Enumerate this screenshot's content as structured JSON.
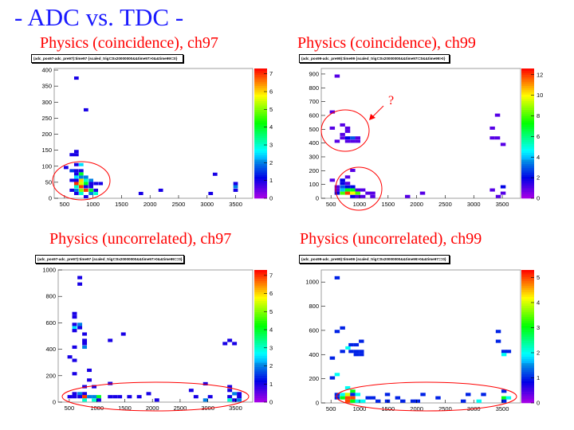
{
  "slide": {
    "heading": "- ADC vs. TDC -",
    "heading_color": "#1a1aff",
    "annotation_color": "#ff0000",
    "panels": [
      {
        "subtitle": "Physics (coincidence), ch97",
        "stat_title": "(adc_pos97-adc_pre97):time97 {scaled_trig!=0x20000000&&time97>0&&time99!=0}"
      },
      {
        "subtitle": "Physics (coincidence), ch99",
        "stat_title": "(adc_pos99-adc_pre99):time99 {scaled_trig!=0x20000000&&time97!=0&&time99>0}",
        "annotation_text": "?"
      },
      {
        "subtitle": "Physics (uncorrelated), ch97",
        "stat_title": "(adc_pos97-adc_pre97):time97 {scaled_trig!=0x20000000&&time97>0&&time99==0}"
      },
      {
        "subtitle": "Physics (uncorrelated), ch99",
        "stat_title": "(adc_pos99-adc_pre99):time99 {scaled_trig!=0x20000000&&time99>0&&time97==0}"
      }
    ]
  },
  "chart_data": [
    {
      "type": "heatmap",
      "palette": "rainbow (violet-blue-cyan-green-yellow-red)",
      "xlim": [
        320,
        3800
      ],
      "ylim": [
        0,
        405
      ],
      "zlim": [
        0,
        7.3
      ],
      "bin": [
        80,
        10
      ],
      "xticks": [
        "500",
        "1000",
        "1500",
        "2000",
        "2500",
        "3000",
        "3500"
      ],
      "yticks": [
        "0",
        "50",
        "100",
        "150",
        "200",
        "250",
        "300",
        "350",
        "400"
      ],
      "zticks": [
        "0",
        "1",
        "2",
        "3",
        "4",
        "5",
        "6",
        "7"
      ],
      "points": [
        [
          709,
          375,
          1
        ],
        [
          877,
          276,
          1
        ],
        [
          709,
          146,
          1
        ],
        [
          630,
          136,
          1
        ],
        [
          709,
          136,
          1
        ],
        [
          709,
          105,
          1
        ],
        [
          793,
          105,
          2.5
        ],
        [
          528,
          96,
          1
        ],
        [
          630,
          86,
          1.5
        ],
        [
          709,
          86,
          1
        ],
        [
          793,
          86,
          1
        ],
        [
          709,
          76,
          1
        ],
        [
          793,
          76,
          4
        ],
        [
          709,
          66,
          2.5
        ],
        [
          793,
          66,
          2
        ],
        [
          877,
          66,
          2
        ],
        [
          630,
          56,
          1
        ],
        [
          709,
          56,
          1
        ],
        [
          793,
          56,
          6
        ],
        [
          877,
          56,
          3
        ],
        [
          965,
          56,
          2
        ],
        [
          709,
          46,
          7
        ],
        [
          793,
          46,
          5.5
        ],
        [
          877,
          46,
          4
        ],
        [
          965,
          46,
          1
        ],
        [
          1049,
          46,
          1
        ],
        [
          1133,
          46,
          1
        ],
        [
          709,
          36,
          3
        ],
        [
          793,
          36,
          7
        ],
        [
          877,
          36,
          1
        ],
        [
          965,
          36,
          1
        ],
        [
          630,
          25,
          1
        ],
        [
          709,
          25,
          2
        ],
        [
          793,
          25,
          5
        ],
        [
          877,
          25,
          7
        ],
        [
          965,
          25,
          4
        ],
        [
          1049,
          25,
          1
        ],
        [
          709,
          15,
          1
        ],
        [
          793,
          15,
          3
        ],
        [
          965,
          15,
          2
        ],
        [
          1049,
          15,
          3
        ],
        [
          877,
          5,
          1
        ],
        [
          1840,
          15,
          1
        ],
        [
          2188,
          25,
          1
        ],
        [
          3063,
          15,
          1
        ],
        [
          3140,
          75,
          1
        ],
        [
          3500,
          46,
          1
        ],
        [
          3500,
          36,
          2
        ],
        [
          3500,
          25,
          1
        ]
      ]
    },
    {
      "type": "heatmap",
      "palette": "rainbow (violet-blue-cyan-green-yellow-red)",
      "xlim": [
        330,
        3820
      ],
      "ylim": [
        0,
        940
      ],
      "zlim": [
        0,
        12.6
      ],
      "bin": [
        90,
        23
      ],
      "xticks": [
        "500",
        "1000",
        "1500",
        "2000",
        "2500",
        "3000",
        "3500"
      ],
      "yticks": [
        "0",
        "100",
        "200",
        "300",
        "400",
        "500",
        "600",
        "700",
        "800",
        "900"
      ],
      "zticks": [
        "0",
        "2",
        "4",
        "6",
        "8",
        "10",
        "12"
      ],
      "points": [
        [
          608,
          885,
          1
        ],
        [
          523,
          625,
          1
        ],
        [
          523,
          508,
          1
        ],
        [
          702,
          531,
          1
        ],
        [
          791,
          508,
          1
        ],
        [
          791,
          485,
          1
        ],
        [
          702,
          462,
          1
        ],
        [
          702,
          437,
          1
        ],
        [
          791,
          437,
          2
        ],
        [
          880,
          437,
          3
        ],
        [
          969,
          437,
          1
        ],
        [
          608,
          413,
          1
        ],
        [
          791,
          413,
          1
        ],
        [
          880,
          413,
          1
        ],
        [
          969,
          413,
          1
        ],
        [
          880,
          202,
          1
        ],
        [
          791,
          154,
          1
        ],
        [
          523,
          131,
          1
        ],
        [
          702,
          131,
          2
        ],
        [
          702,
          108,
          2
        ],
        [
          791,
          108,
          1
        ],
        [
          608,
          83,
          1
        ],
        [
          702,
          83,
          3
        ],
        [
          791,
          83,
          2
        ],
        [
          880,
          83,
          2
        ],
        [
          608,
          60,
          1
        ],
        [
          702,
          60,
          4
        ],
        [
          791,
          60,
          7
        ],
        [
          880,
          60,
          7
        ],
        [
          969,
          60,
          1
        ],
        [
          1058,
          60,
          1
        ],
        [
          608,
          37,
          2
        ],
        [
          702,
          37,
          8
        ],
        [
          791,
          37,
          12
        ],
        [
          880,
          37,
          10
        ],
        [
          969,
          37,
          8
        ],
        [
          1147,
          37,
          1
        ],
        [
          1231,
          37,
          1
        ],
        [
          880,
          13,
          2
        ],
        [
          969,
          13,
          1
        ],
        [
          1058,
          13,
          1
        ],
        [
          1231,
          13,
          1
        ],
        [
          1841,
          13,
          1
        ],
        [
          2103,
          37,
          1
        ],
        [
          3430,
          13,
          1
        ],
        [
          3514,
          37,
          1
        ],
        [
          3326,
          60,
          1
        ],
        [
          3514,
          83,
          2
        ],
        [
          3416,
          602,
          1
        ],
        [
          3326,
          508,
          1
        ],
        [
          3326,
          437,
          1
        ],
        [
          3416,
          437,
          1
        ],
        [
          3514,
          390,
          1
        ]
      ]
    },
    {
      "type": "heatmap",
      "palette": "rainbow (violet-blue-cyan-green-yellow-red)",
      "xlim": [
        300,
        3810
      ],
      "ylim": [
        0,
        1000
      ],
      "zlim": [
        0,
        7.3
      ],
      "bin": [
        85,
        25
      ],
      "xticks": [
        "500",
        "1000",
        "1500",
        "2000",
        "2500",
        "3000",
        "3500"
      ],
      "yticks": [
        "0",
        "200",
        "400",
        "600",
        "800",
        "1000"
      ],
      "zticks": [
        "0",
        "1",
        "2",
        "3",
        "4",
        "5",
        "6",
        "7"
      ],
      "points": [
        [
          690,
          942,
          1
        ],
        [
          690,
          893,
          1
        ],
        [
          595,
          670,
          1
        ],
        [
          595,
          644,
          1
        ],
        [
          595,
          588,
          1
        ],
        [
          690,
          588,
          2
        ],
        [
          595,
          563,
          2.5
        ],
        [
          690,
          563,
          1
        ],
        [
          595,
          541,
          1
        ],
        [
          776,
          515,
          1
        ],
        [
          1476,
          515,
          1
        ],
        [
          776,
          467,
          1
        ],
        [
          776,
          443,
          1
        ],
        [
          1238,
          467,
          1
        ],
        [
          776,
          416,
          2
        ],
        [
          595,
          416,
          1
        ],
        [
          510,
          342,
          1
        ],
        [
          595,
          316,
          1
        ],
        [
          595,
          215,
          1
        ],
        [
          862,
          241,
          1
        ],
        [
          862,
          167,
          1
        ],
        [
          776,
          117,
          1
        ],
        [
          948,
          117,
          1
        ],
        [
          1238,
          141,
          1
        ],
        [
          595,
          64,
          1
        ],
        [
          690,
          64,
          2
        ],
        [
          776,
          64,
          1
        ],
        [
          510,
          41,
          1
        ],
        [
          595,
          41,
          1
        ],
        [
          690,
          41,
          1
        ],
        [
          776,
          41,
          7
        ],
        [
          862,
          41,
          2
        ],
        [
          948,
          41,
          2
        ],
        [
          1033,
          41,
          4
        ],
        [
          1238,
          41,
          1
        ],
        [
          1324,
          41,
          1
        ],
        [
          1410,
          41,
          1
        ],
        [
          1586,
          41,
          1
        ],
        [
          1762,
          41,
          1
        ],
        [
          1933,
          64,
          1
        ],
        [
          776,
          16,
          3
        ],
        [
          948,
          16,
          3
        ],
        [
          1033,
          16,
          1
        ],
        [
          2081,
          16,
          1
        ],
        [
          2700,
          89,
          1
        ],
        [
          2786,
          41,
          1
        ],
        [
          2957,
          139,
          1
        ],
        [
          2957,
          16,
          2
        ],
        [
          3043,
          41,
          1
        ],
        [
          3310,
          443,
          1
        ],
        [
          3395,
          467,
          1
        ],
        [
          3481,
          443,
          1
        ],
        [
          3395,
          117,
          1
        ],
        [
          3395,
          89,
          1
        ],
        [
          3395,
          41,
          1
        ],
        [
          3481,
          64,
          2
        ],
        [
          3567,
          64,
          1
        ],
        [
          3567,
          41,
          1
        ],
        [
          3395,
          16,
          3
        ],
        [
          3481,
          16,
          1
        ],
        [
          3567,
          16,
          2
        ]
      ]
    },
    {
      "type": "heatmap",
      "palette": "rainbow (violet-blue-cyan-green-yellow-red)",
      "xlim": [
        330,
        3820
      ],
      "ylim": [
        0,
        1100
      ],
      "zlim": [
        0,
        5.3
      ],
      "bin": [
        90,
        27
      ],
      "xticks": [
        "500",
        "1000",
        "1500",
        "2000",
        "2500",
        "3000",
        "3500"
      ],
      "yticks": [
        "0",
        "200",
        "400",
        "600",
        "800",
        "1000"
      ],
      "zticks": [
        "0",
        "1",
        "2",
        "3",
        "4",
        "5"
      ],
      "points": [
        [
          608,
          1035,
          1
        ],
        [
          608,
          591,
          1
        ],
        [
          702,
          620,
          1
        ],
        [
          524,
          371,
          1
        ],
        [
          702,
          426,
          1
        ],
        [
          797,
          455,
          2
        ],
        [
          853,
          481,
          1
        ],
        [
          942,
          481,
          1
        ],
        [
          1032,
          510,
          1
        ],
        [
          853,
          426,
          1
        ],
        [
          942,
          426,
          1
        ],
        [
          1032,
          426,
          1
        ],
        [
          942,
          400,
          1
        ],
        [
          1032,
          400,
          1
        ],
        [
          524,
          207,
          1
        ],
        [
          608,
          235,
          2
        ],
        [
          792,
          125,
          2
        ],
        [
          881,
          97,
          3
        ],
        [
          608,
          70,
          1
        ],
        [
          702,
          70,
          2
        ],
        [
          792,
          70,
          4
        ],
        [
          881,
          70,
          1
        ],
        [
          970,
          70,
          2
        ],
        [
          1489,
          70,
          1
        ],
        [
          2111,
          70,
          1
        ],
        [
          2902,
          70,
          1
        ],
        [
          3171,
          70,
          1
        ],
        [
          608,
          42,
          1
        ],
        [
          702,
          42,
          3
        ],
        [
          792,
          42,
          5
        ],
        [
          881,
          42,
          5
        ],
        [
          1150,
          42,
          1
        ],
        [
          1235,
          42,
          1
        ],
        [
          1668,
          42,
          1
        ],
        [
          2375,
          42,
          1
        ],
        [
          3529,
          42,
          3
        ],
        [
          3609,
          42,
          2
        ],
        [
          792,
          15,
          5
        ],
        [
          881,
          15,
          3
        ],
        [
          970,
          15,
          2
        ],
        [
          1060,
          15,
          2
        ],
        [
          1324,
          15,
          1
        ],
        [
          1489,
          15,
          1
        ],
        [
          1758,
          15,
          1
        ],
        [
          1937,
          15,
          1
        ],
        [
          2017,
          15,
          1
        ],
        [
          2817,
          15,
          1
        ],
        [
          3091,
          15,
          2
        ],
        [
          3529,
          15,
          1
        ],
        [
          3529,
          97,
          1
        ],
        [
          3430,
          591,
          1
        ],
        [
          3430,
          510,
          1
        ],
        [
          3529,
          426,
          1
        ],
        [
          3609,
          426,
          1
        ],
        [
          3529,
          400,
          2
        ]
      ]
    }
  ]
}
